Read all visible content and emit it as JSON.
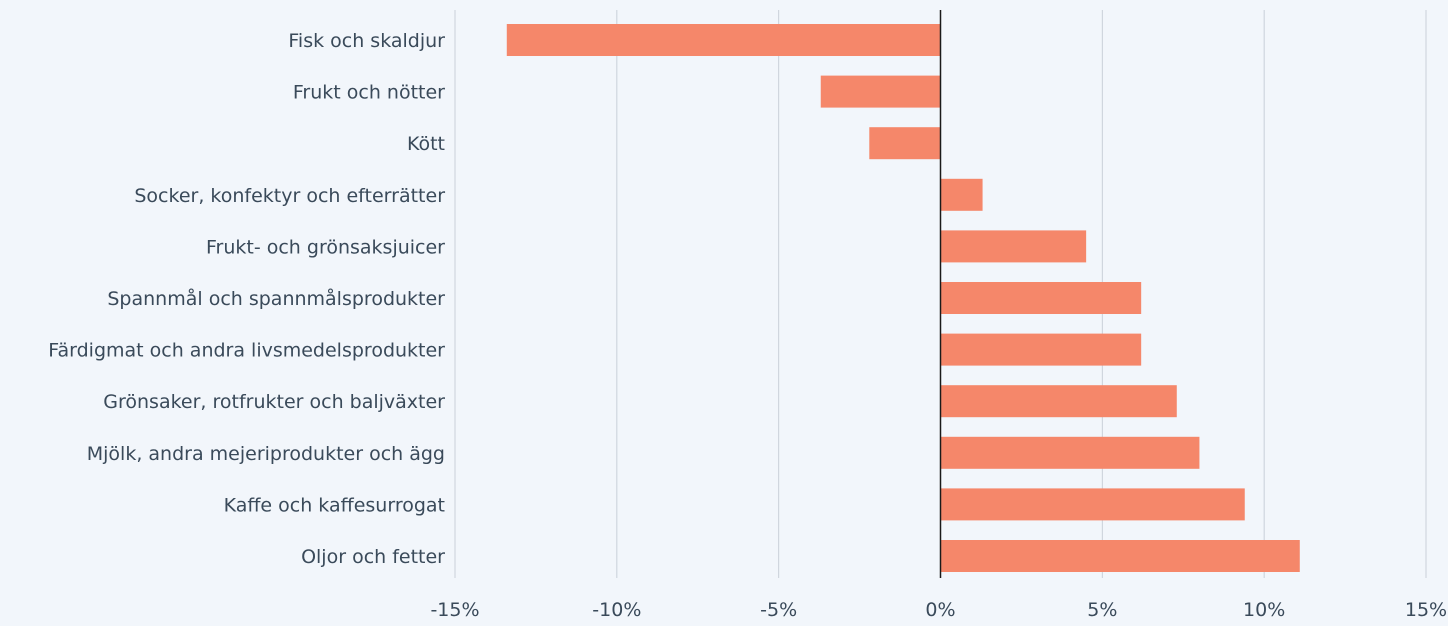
{
  "chart_data": {
    "type": "bar",
    "orientation": "horizontal",
    "categories": [
      "Fisk och skaldjur",
      "Frukt och nötter",
      "Kött",
      "Socker, konfektyr och efterrätter",
      "Frukt- och grönsaksjuicer",
      "Spannmål och spannmålsprodukter",
      "Färdigmat och andra livsmedelsprodukter",
      "Grönsaker, rotfrukter och baljväxter",
      "Mjölk, andra mejeriprodukter och ägg",
      "Kaffe och kaffesurrogat",
      "Oljor och fetter"
    ],
    "values": [
      -13.4,
      -3.7,
      -2.2,
      1.3,
      4.5,
      6.2,
      6.2,
      7.3,
      8.0,
      9.4,
      11.1
    ],
    "xlim": [
      -15,
      15
    ],
    "xticks": [
      -15,
      -10,
      -5,
      0,
      5,
      10,
      15
    ],
    "tick_labels": [
      "-15%",
      "-10%",
      "-5%",
      "0%",
      "5%",
      "10%",
      "15%"
    ],
    "grid": true,
    "bar_color": "#f5876a",
    "grid_color": "#c9d0d8",
    "zero_line_color": "#1a1a1a",
    "title": "",
    "xlabel": "",
    "ylabel": ""
  }
}
